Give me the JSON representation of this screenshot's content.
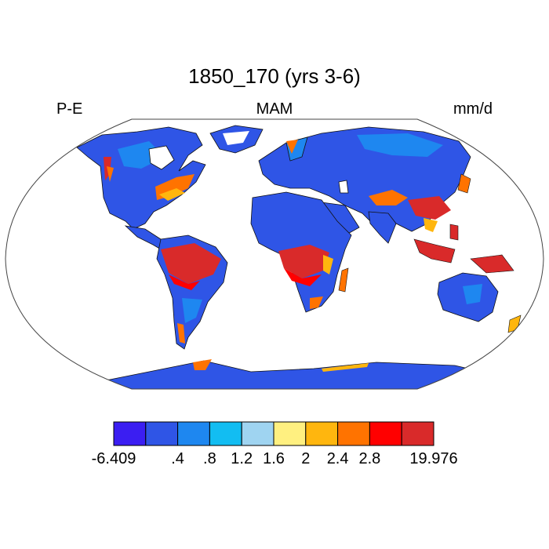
{
  "title": "1850_170 (yrs 3-6)",
  "left_label": "P-E",
  "center_label": "MAM",
  "right_label": "mm/d",
  "colorbar": {
    "colors": [
      "#3b1ef2",
      "#2f55e6",
      "#1e87f0",
      "#12bdf2",
      "#9fd4f1",
      "#fff080",
      "#ffb60e",
      "#ff7300",
      "#ff0000",
      "#d92a2a"
    ],
    "labels": [
      "-6.409",
      ".4",
      ".8",
      "1.2",
      "1.6",
      "2",
      "2.4",
      "2.8",
      "19.976"
    ],
    "label_edges": [
      0,
      2,
      3,
      4,
      5,
      6,
      7,
      8,
      10
    ]
  },
  "colors": {
    "ocean": "#ffffff",
    "coast": "#111111",
    "frame": "#444444"
  }
}
